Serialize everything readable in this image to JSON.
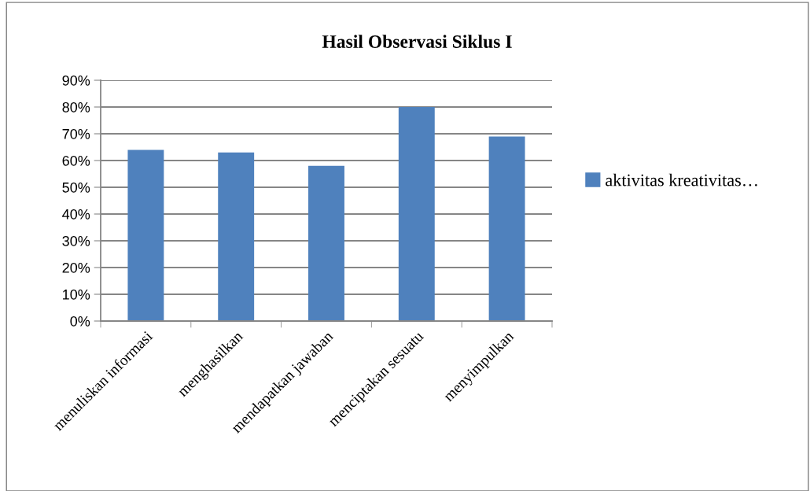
{
  "chart_data": {
    "type": "bar",
    "title": "Hasil Observasi Siklus I",
    "categories": [
      "menuliskan informasi",
      "menghasilkan",
      "mendapatkan jawaban",
      "menciptakan sesuatu",
      "menyimpulkan"
    ],
    "series": [
      {
        "name": "aktivitas kreativitas…",
        "color": "#4f81bd",
        "values": [
          64,
          63,
          58,
          80,
          69
        ]
      }
    ],
    "ylim": [
      0,
      90
    ],
    "yticks": [
      {
        "value": 0,
        "label": "0%"
      },
      {
        "value": 10,
        "label": "10%"
      },
      {
        "value": 20,
        "label": "20%"
      },
      {
        "value": 30,
        "label": "30%"
      },
      {
        "value": 40,
        "label": "40%"
      },
      {
        "value": 50,
        "label": "50%"
      },
      {
        "value": 60,
        "label": "60%"
      },
      {
        "value": 70,
        "label": "70%"
      },
      {
        "value": 80,
        "label": "80%"
      },
      {
        "value": 90,
        "label": "90%"
      }
    ],
    "grid": "y",
    "legend": "right"
  }
}
